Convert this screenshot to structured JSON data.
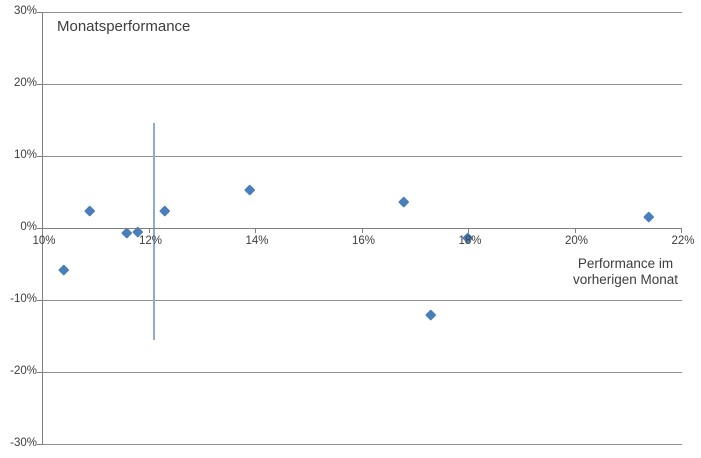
{
  "chart_data": {
    "type": "scatter",
    "title": "Monatsperformance",
    "xlabel_lines": [
      "Performance im",
      "vorherigen Monat"
    ],
    "ylabel": "",
    "xlim": [
      10,
      22
    ],
    "ylim": [
      -30,
      30
    ],
    "grid": "horizontal",
    "legend": "none",
    "x_ticks": [
      {
        "value": 10,
        "label": "10%"
      },
      {
        "value": 12,
        "label": "12%"
      },
      {
        "value": 14,
        "label": "14%"
      },
      {
        "value": 16,
        "label": "16%"
      },
      {
        "value": 18,
        "label": "18%"
      },
      {
        "value": 20,
        "label": "20%"
      },
      {
        "value": 22,
        "label": "22%"
      }
    ],
    "y_ticks": [
      {
        "value": 30,
        "label": "30%"
      },
      {
        "value": 20,
        "label": "20%"
      },
      {
        "value": 10,
        "label": "10%"
      },
      {
        "value": 0,
        "label": "0%"
      },
      {
        "value": -10,
        "label": "-10%"
      },
      {
        "value": -20,
        "label": "-20%"
      },
      {
        "value": -30,
        "label": "-30%"
      }
    ],
    "series": [
      {
        "name": "Monatsperformance",
        "marker": "diamond",
        "points": [
          {
            "x": 10.4,
            "y": -5.8
          },
          {
            "x": 10.9,
            "y": 2.4
          },
          {
            "x": 11.6,
            "y": -0.7
          },
          {
            "x": 11.8,
            "y": -0.5
          },
          {
            "x": 12.3,
            "y": 2.4
          },
          {
            "x": 13.9,
            "y": 5.3
          },
          {
            "x": 16.8,
            "y": 3.7
          },
          {
            "x": 17.3,
            "y": -12.0
          },
          {
            "x": 18.0,
            "y": -1.3
          },
          {
            "x": 21.4,
            "y": 1.5
          }
        ]
      }
    ],
    "vertical_line": {
      "x": 12.1,
      "y_from": -15.6,
      "y_to": 14.6
    },
    "colors": {
      "marker": "#4a7ebb",
      "vertical_line": "#8faccf",
      "gridline": "#8e8e8e",
      "axis": "#7f7f7f",
      "text": "#3d3d3d"
    }
  }
}
